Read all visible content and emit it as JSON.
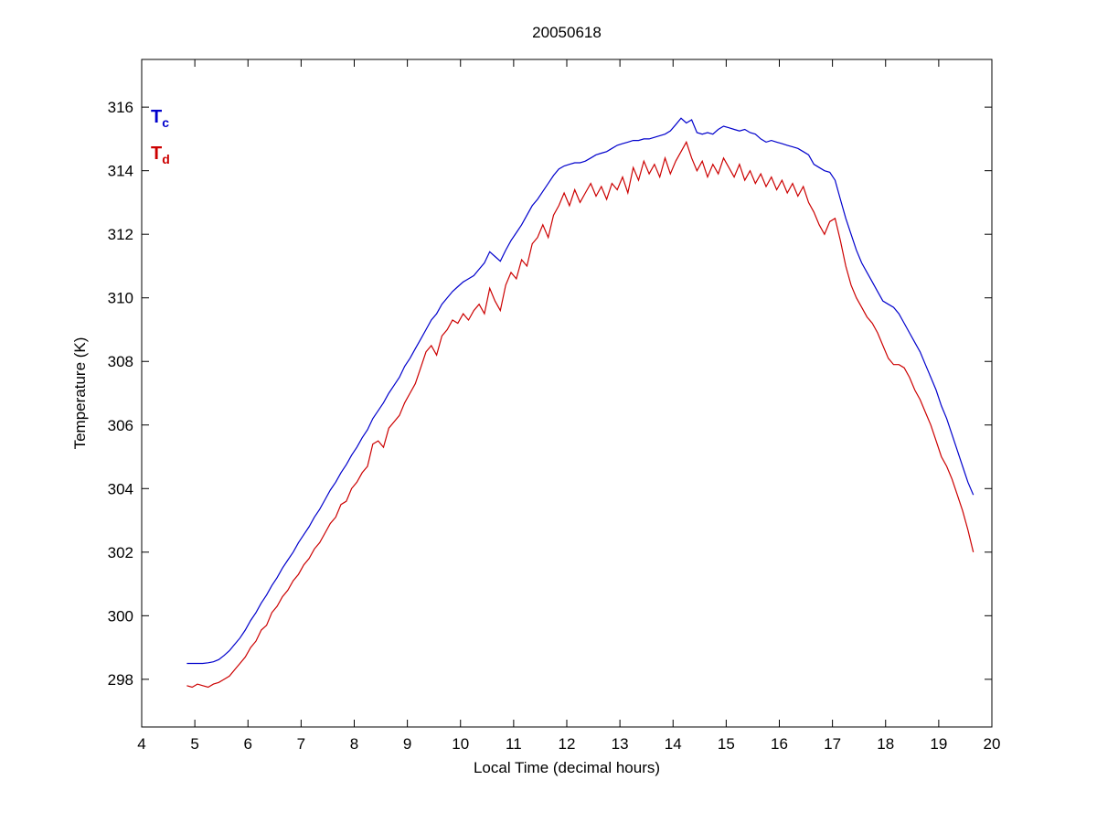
{
  "page": {
    "background": "#ffffff"
  },
  "chart_data": {
    "type": "line",
    "title": "20050618",
    "xlabel": "Local Time (decimal hours)",
    "ylabel": "Temperature (K)",
    "xlim": [
      4,
      20
    ],
    "ylim": [
      296.5,
      317.5
    ],
    "x_ticks": [
      4,
      5,
      6,
      7,
      8,
      9,
      10,
      11,
      12,
      13,
      14,
      15,
      16,
      17,
      18,
      19,
      20
    ],
    "y_ticks": [
      298,
      300,
      302,
      304,
      306,
      308,
      310,
      312,
      314,
      316
    ],
    "grid": false,
    "axis_color": "#000000",
    "legend_position": "top-left-inside",
    "series": [
      {
        "name": "Tc",
        "legend_main": "T",
        "legend_sub": "c",
        "color": "#0000cc",
        "x_start": 4.85,
        "x_step": 0.1,
        "values": [
          298.5,
          298.5,
          298.5,
          298.5,
          298.52,
          298.55,
          298.62,
          298.75,
          298.9,
          299.1,
          299.3,
          299.55,
          299.85,
          300.1,
          300.4,
          300.65,
          300.95,
          301.2,
          301.5,
          301.75,
          302.0,
          302.3,
          302.55,
          302.8,
          303.1,
          303.35,
          303.65,
          303.95,
          304.2,
          304.5,
          304.75,
          305.05,
          305.3,
          305.6,
          305.85,
          306.2,
          306.45,
          306.7,
          307.0,
          307.25,
          307.5,
          307.85,
          308.1,
          308.4,
          308.7,
          309.0,
          309.3,
          309.5,
          309.8,
          310.0,
          310.2,
          310.35,
          310.5,
          310.6,
          310.7,
          310.9,
          311.1,
          311.45,
          311.3,
          311.15,
          311.5,
          311.8,
          312.05,
          312.3,
          312.6,
          312.9,
          313.1,
          313.35,
          313.6,
          313.85,
          314.05,
          314.15,
          314.2,
          314.25,
          314.25,
          314.3,
          314.4,
          314.5,
          314.55,
          314.6,
          314.7,
          314.8,
          314.85,
          314.9,
          314.95,
          314.95,
          315.0,
          315.0,
          315.05,
          315.1,
          315.15,
          315.25,
          315.45,
          315.65,
          315.5,
          315.6,
          315.2,
          315.15,
          315.2,
          315.15,
          315.3,
          315.4,
          315.35,
          315.3,
          315.25,
          315.3,
          315.2,
          315.15,
          315.0,
          314.9,
          314.95,
          314.9,
          314.85,
          314.8,
          314.75,
          314.7,
          314.6,
          314.5,
          314.2,
          314.1,
          314.0,
          313.95,
          313.7,
          313.1,
          312.5,
          312.0,
          311.5,
          311.1,
          310.8,
          310.5,
          310.2,
          309.9,
          309.8,
          309.7,
          309.5,
          309.2,
          308.9,
          308.6,
          308.3,
          307.9,
          307.5,
          307.1,
          306.6,
          306.2,
          305.7,
          305.2,
          304.7,
          304.2,
          303.8
        ]
      },
      {
        "name": "Td",
        "legend_main": "T",
        "legend_sub": "d",
        "color": "#cc0000",
        "x_start": 4.85,
        "x_step": 0.1,
        "values": [
          297.8,
          297.75,
          297.85,
          297.8,
          297.75,
          297.85,
          297.9,
          298.0,
          298.1,
          298.3,
          298.5,
          298.7,
          299.0,
          299.2,
          299.55,
          299.7,
          300.1,
          300.3,
          300.6,
          300.8,
          301.1,
          301.3,
          301.6,
          301.8,
          302.1,
          302.3,
          302.6,
          302.9,
          303.1,
          303.5,
          303.6,
          304.0,
          304.2,
          304.5,
          304.7,
          305.4,
          305.5,
          305.3,
          305.9,
          306.1,
          306.3,
          306.7,
          307.0,
          307.3,
          307.8,
          308.3,
          308.5,
          308.2,
          308.8,
          309.0,
          309.3,
          309.2,
          309.5,
          309.3,
          309.6,
          309.8,
          309.5,
          310.3,
          309.9,
          309.6,
          310.4,
          310.8,
          310.6,
          311.2,
          311.0,
          311.7,
          311.9,
          312.3,
          311.9,
          312.6,
          312.9,
          313.3,
          312.9,
          313.4,
          313.0,
          313.3,
          313.6,
          313.2,
          313.5,
          313.1,
          313.6,
          313.4,
          313.8,
          313.3,
          314.1,
          313.7,
          314.3,
          313.9,
          314.2,
          313.8,
          314.4,
          313.9,
          314.3,
          314.6,
          314.9,
          314.4,
          314.0,
          314.3,
          313.8,
          314.2,
          313.9,
          314.4,
          314.1,
          313.8,
          314.2,
          313.7,
          314.0,
          313.6,
          313.9,
          313.5,
          313.8,
          313.4,
          313.7,
          313.3,
          313.6,
          313.2,
          313.5,
          313.0,
          312.7,
          312.3,
          312.0,
          312.4,
          312.5,
          311.8,
          311.0,
          310.4,
          310.0,
          309.7,
          309.4,
          309.2,
          308.9,
          308.5,
          308.1,
          307.9,
          307.9,
          307.8,
          307.5,
          307.1,
          306.8,
          306.4,
          306.0,
          305.5,
          305.0,
          304.7,
          304.3,
          303.8,
          303.3,
          302.7,
          302.0
        ]
      }
    ]
  }
}
